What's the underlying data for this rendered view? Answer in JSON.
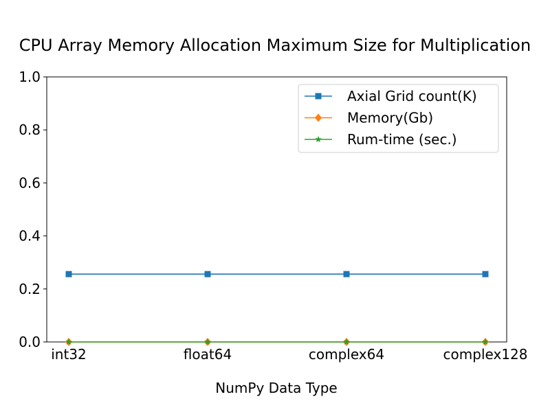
{
  "chart_data": {
    "type": "line",
    "title": "CPU Array Memory Allocation Maximum Size for Multiplication",
    "xlabel": "NumPy Data Type",
    "ylabel": "",
    "categories": [
      "int32",
      "float64",
      "complex64",
      "complex128"
    ],
    "ylim": [
      0.0,
      1.0
    ],
    "yticks": [
      0.0,
      0.2,
      0.4,
      0.6,
      0.8,
      1.0
    ],
    "ytick_labels": [
      "0.0",
      "0.2",
      "0.4",
      "0.6",
      "0.8",
      "1.0"
    ],
    "grid": false,
    "legend_position": "top-right",
    "series": [
      {
        "name": "Axial Grid count(K)",
        "values": [
          0.256,
          0.256,
          0.256,
          0.256
        ],
        "color": "#1f77b4",
        "marker": "square"
      },
      {
        "name": "Memory(Gb)",
        "values": [
          0.0,
          0.0,
          0.0,
          0.0
        ],
        "color": "#ff7f0e",
        "marker": "diamond"
      },
      {
        "name": "Rum-time (sec.)",
        "values": [
          0.0,
          0.0,
          0.0,
          0.0
        ],
        "color": "#2ca02c",
        "marker": "star"
      }
    ]
  }
}
